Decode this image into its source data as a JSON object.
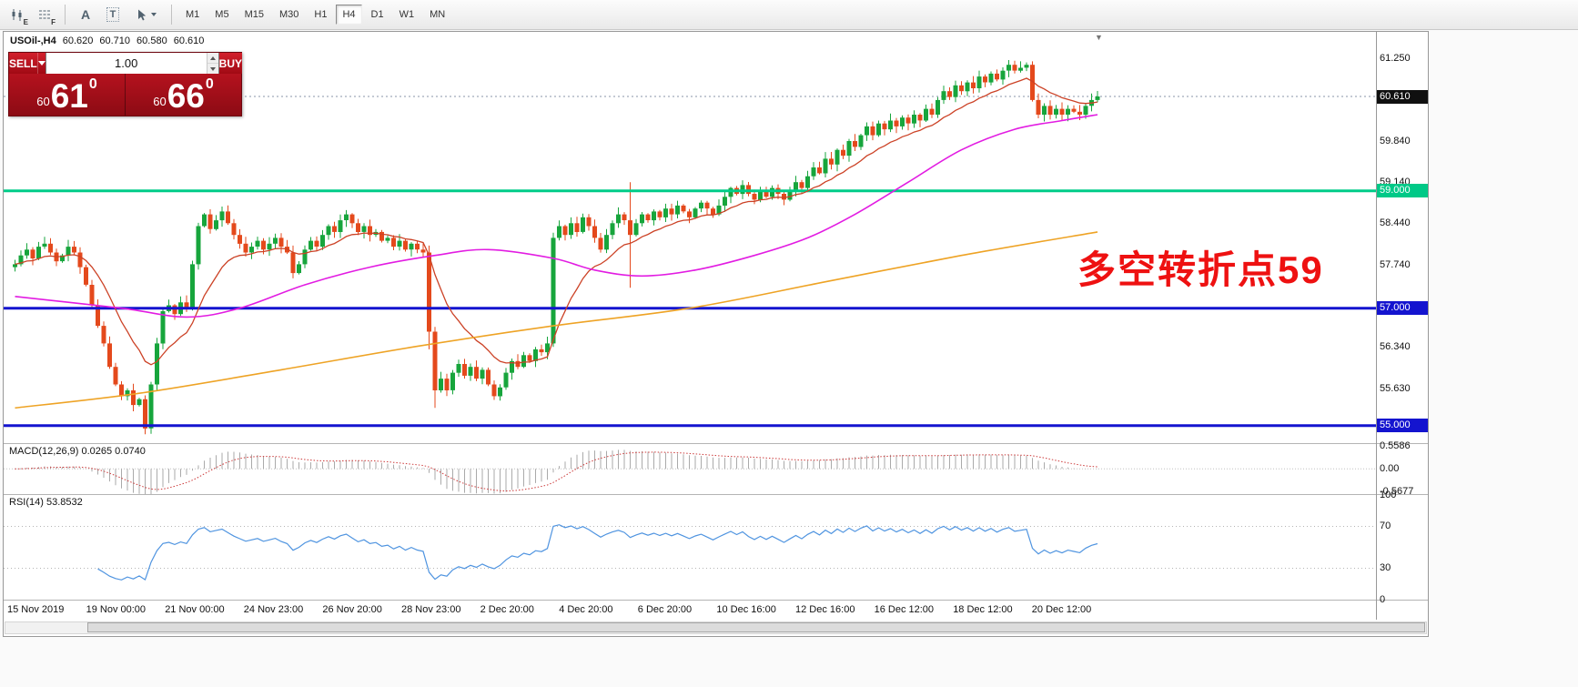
{
  "toolbar": {
    "icons": [
      {
        "name": "indicators-icon",
        "badge": "E"
      },
      {
        "name": "objects-icon",
        "badge": "F"
      },
      {
        "name": "text-label-icon",
        "badge": "A"
      },
      {
        "name": "text-box-icon",
        "badge": "T"
      },
      {
        "name": "crosshair-cursor-icon",
        "badge": ""
      }
    ],
    "timeframes": [
      "M1",
      "M5",
      "M15",
      "M30",
      "H1",
      "H4",
      "D1",
      "W1",
      "MN"
    ],
    "active_timeframe": "H4"
  },
  "chart_header": {
    "symbol": "USOil-,H4",
    "open": "60.620",
    "high": "60.710",
    "low": "60.580",
    "close": "60.610"
  },
  "trade_panel": {
    "sell_label": "SELL",
    "buy_label": "BUY",
    "volume": "1.00",
    "sell_price": {
      "prefix": "60",
      "big": "61",
      "sup": "0"
    },
    "buy_price": {
      "prefix": "60",
      "big": "66",
      "sup": "0"
    }
  },
  "annotation": {
    "text": "多空转折点59",
    "color": "#ee1111"
  },
  "current_price": 60.61,
  "price_axis": [
    {
      "text": "61.250",
      "price": 61.25,
      "type": "normal"
    },
    {
      "text": "60.610",
      "price": 60.61,
      "type": "current"
    },
    {
      "text": "59.840",
      "price": 59.84,
      "type": "normal"
    },
    {
      "text": "59.140",
      "price": 59.14,
      "type": "normal"
    },
    {
      "text": "59.000",
      "price": 59.0,
      "type": "green"
    },
    {
      "text": "58.440",
      "price": 58.44,
      "type": "normal"
    },
    {
      "text": "57.740",
      "price": 57.74,
      "type": "normal"
    },
    {
      "text": "57.000",
      "price": 57.0,
      "type": "blue"
    },
    {
      "text": "56.340",
      "price": 56.34,
      "type": "normal"
    },
    {
      "text": "55.630",
      "price": 55.63,
      "type": "normal"
    },
    {
      "text": "55.000",
      "price": 55.0,
      "type": "blue"
    }
  ],
  "levels": [
    {
      "price": 59.0,
      "color": "#00cc88",
      "width": 3
    },
    {
      "price": 57.0,
      "color": "#1414cf",
      "width": 3
    },
    {
      "price": 55.0,
      "color": "#1414cf",
      "width": 3
    }
  ],
  "macd_panel": {
    "label": "MACD(12,26,9) 0.0265 0.0740",
    "axis": [
      {
        "text": "0.5586",
        "value": 0.5586
      },
      {
        "text": "0.00",
        "value": 0
      },
      {
        "text": "-0.5677",
        "value": -0.5677
      }
    ],
    "range": [
      -0.63,
      0.62
    ]
  },
  "rsi_panel": {
    "label": "RSI(14) 53.8532",
    "axis": [
      {
        "text": "100",
        "value": 100
      },
      {
        "text": "70",
        "value": 70
      },
      {
        "text": "30",
        "value": 30
      },
      {
        "text": "0",
        "value": 0
      }
    ],
    "dotted_levels": [
      70,
      30
    ]
  },
  "time_axis": [
    "15 Nov 2019",
    "19 Nov 00:00",
    "21 Nov 00:00",
    "24 Nov 23:00",
    "26 Nov 20:00",
    "28 Nov 23:00",
    "2 Dec 20:00",
    "4 Dec 20:00",
    "6 Dec 20:00",
    "10 Dec 16:00",
    "12 Dec 16:00",
    "16 Dec 12:00",
    "18 Dec 12:00",
    "20 Dec 12:00"
  ],
  "chart_data": {
    "type": "candlestick",
    "symbol": "USOil",
    "timeframe": "H4",
    "title": "USOil-,H4 60.620 60.710 60.580 60.610",
    "last_ohlc": {
      "open": 60.62,
      "high": 60.71,
      "low": 60.58,
      "close": 60.61
    },
    "price_range": [
      54.7,
      61.65
    ],
    "horizontal_levels": [
      59.0,
      57.0,
      55.0
    ],
    "first_open": 57.7,
    "closes": [
      57.75,
      57.9,
      58.0,
      57.85,
      58.05,
      58.1,
      57.95,
      57.8,
      57.9,
      58.05,
      57.95,
      57.7,
      57.4,
      57.05,
      56.7,
      56.4,
      56.0,
      55.7,
      55.5,
      55.6,
      55.35,
      55.45,
      54.95,
      55.7,
      56.4,
      56.95,
      57.05,
      56.9,
      57.1,
      57.0,
      57.75,
      58.4,
      58.6,
      58.35,
      58.5,
      58.65,
      58.45,
      58.25,
      58.1,
      57.95,
      58.05,
      58.15,
      58.0,
      58.1,
      58.2,
      58.05,
      57.95,
      57.6,
      57.75,
      58.0,
      58.15,
      58.05,
      58.25,
      58.4,
      58.3,
      58.5,
      58.6,
      58.45,
      58.3,
      58.4,
      58.25,
      58.3,
      58.15,
      58.2,
      58.05,
      58.15,
      58.0,
      58.1,
      58.0,
      57.95,
      56.6,
      55.6,
      55.8,
      55.6,
      55.9,
      56.05,
      55.85,
      56.0,
      55.8,
      55.95,
      55.7,
      55.5,
      55.65,
      55.9,
      56.1,
      56.0,
      56.2,
      56.1,
      56.3,
      56.25,
      56.4,
      58.2,
      58.4,
      58.25,
      58.45,
      58.3,
      58.55,
      58.4,
      58.2,
      58.0,
      58.25,
      58.45,
      58.6,
      58.5,
      58.25,
      58.45,
      58.6,
      58.5,
      58.65,
      58.55,
      58.7,
      58.6,
      58.75,
      58.65,
      58.55,
      58.7,
      58.8,
      58.7,
      58.6,
      58.75,
      58.9,
      59.05,
      58.95,
      59.1,
      58.95,
      58.85,
      59.0,
      58.9,
      59.05,
      58.95,
      58.85,
      59.0,
      59.15,
      59.05,
      59.25,
      59.4,
      59.3,
      59.55,
      59.45,
      59.7,
      59.6,
      59.85,
      59.75,
      59.95,
      60.1,
      59.95,
      60.15,
      60.05,
      60.2,
      60.1,
      60.25,
      60.15,
      60.3,
      60.2,
      60.4,
      60.3,
      60.55,
      60.7,
      60.6,
      60.8,
      60.7,
      60.85,
      60.75,
      60.95,
      60.85,
      61.0,
      60.9,
      61.05,
      61.15,
      61.05,
      61.1,
      61.15,
      60.55,
      60.3,
      60.45,
      60.3,
      60.4,
      60.3,
      60.4,
      60.35,
      60.3,
      60.45,
      60.55,
      60.61
    ],
    "wick_overrides": {
      "22": {
        "low": 54.85
      },
      "70": {
        "low": 56.3
      },
      "71": {
        "low": 55.3
      },
      "104": {
        "high": 59.15,
        "low": 57.35
      }
    },
    "ma_fast_period": 13,
    "ma_mid_anchors": [
      [
        0,
        57.2
      ],
      [
        18,
        57.0
      ],
      [
        29,
        56.85
      ],
      [
        38,
        57.0
      ],
      [
        49,
        57.4
      ],
      [
        60,
        57.7
      ],
      [
        71,
        57.9
      ],
      [
        80,
        58.0
      ],
      [
        91,
        57.85
      ],
      [
        98,
        57.65
      ],
      [
        106,
        57.55
      ],
      [
        115,
        57.65
      ],
      [
        125,
        57.9
      ],
      [
        134,
        58.2
      ],
      [
        142,
        58.6
      ],
      [
        151,
        59.15
      ],
      [
        160,
        59.7
      ],
      [
        169,
        60.05
      ],
      [
        177,
        60.2
      ],
      [
        183,
        60.3
      ]
    ],
    "ma_slow_anchors": [
      [
        0,
        55.3
      ],
      [
        21,
        55.55
      ],
      [
        45,
        55.95
      ],
      [
        68,
        56.35
      ],
      [
        91,
        56.7
      ],
      [
        114,
        57.0
      ],
      [
        137,
        57.45
      ],
      [
        160,
        57.9
      ],
      [
        183,
        58.3
      ]
    ],
    "colors": {
      "up": "#17a53c",
      "down": "#e4491c",
      "ma_fast": "#cc4226",
      "ma_mid": "#e21ce2",
      "ma_slow": "#eea325",
      "rsi": "#4f94e0",
      "macd_hist": "#aaaaaa",
      "macd_signal": "#cc3a3a",
      "bid_line": "#8a96a8"
    },
    "indicators": {
      "macd": {
        "fast": 12,
        "slow": 26,
        "signal": 9,
        "values": "0.0265 0.0740"
      },
      "rsi": {
        "period": 14,
        "value": 53.8532
      }
    }
  }
}
